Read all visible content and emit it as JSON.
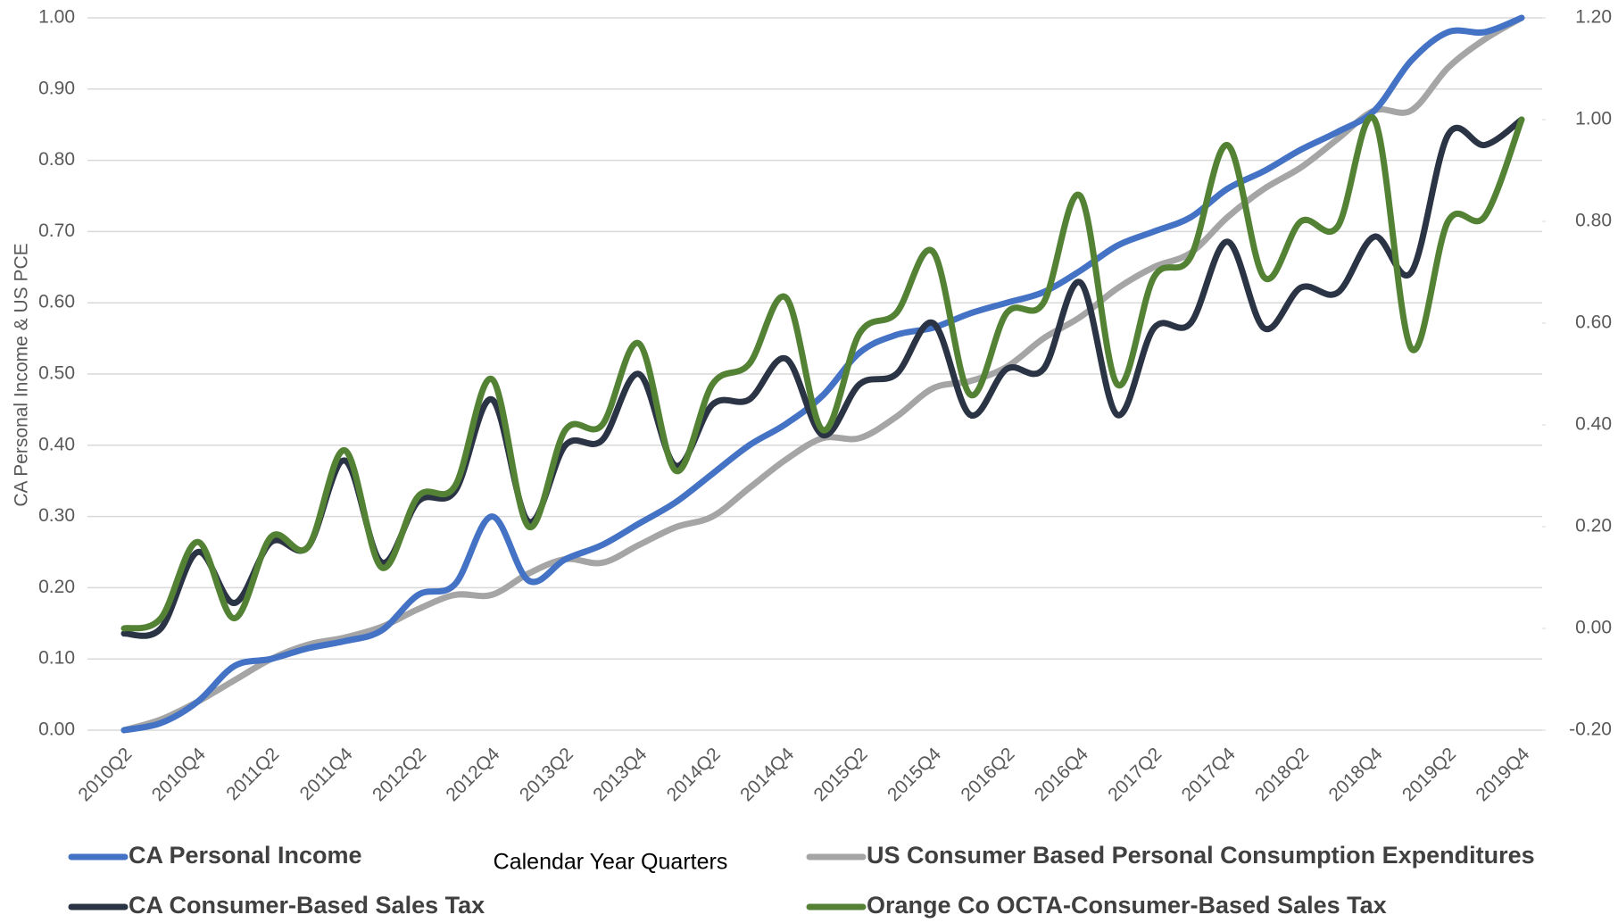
{
  "chart_data": {
    "type": "line",
    "xlabel": "Calendar Year Quarters",
    "ylabel": "CA Personal Income & US PCE",
    "categories": [
      "2010Q2",
      null,
      "2010Q4",
      null,
      "2011Q2",
      null,
      "2011Q4",
      null,
      "2012Q2",
      null,
      "2012Q4",
      null,
      "2013Q2",
      null,
      "2013Q4",
      null,
      "2014Q2",
      null,
      "2014Q4",
      null,
      "2015Q2",
      null,
      "2015Q4",
      null,
      "2016Q2",
      null,
      "2016Q4",
      null,
      "2017Q2",
      null,
      "2017Q4",
      null,
      "2018Q2",
      null,
      "2018Q4",
      null,
      "2019Q2",
      null,
      "2019Q4"
    ],
    "series": [
      {
        "name": "CA Personal Income",
        "color": "#4472c4",
        "values": [
          0.0,
          0.01,
          0.04,
          0.09,
          0.1,
          0.115,
          0.125,
          0.14,
          0.19,
          0.205,
          0.3,
          0.21,
          0.24,
          0.26,
          0.29,
          0.32,
          0.36,
          0.4,
          0.43,
          0.47,
          0.53,
          0.555,
          0.565,
          0.585,
          0.6,
          0.615,
          0.645,
          0.68,
          0.7,
          0.72,
          0.76,
          0.785,
          0.815,
          0.84,
          0.87,
          0.94,
          0.98,
          0.98,
          1.0
        ]
      },
      {
        "name": "US Consumer Based Personal Consumption Expenditures",
        "color": "#a5a5a5",
        "values": [
          0.0,
          0.015,
          0.04,
          0.07,
          0.1,
          0.12,
          0.13,
          0.145,
          0.17,
          0.19,
          0.19,
          0.22,
          0.24,
          0.235,
          0.26,
          0.285,
          0.3,
          0.34,
          0.38,
          0.41,
          0.41,
          0.44,
          0.48,
          0.49,
          0.51,
          0.55,
          0.58,
          0.62,
          0.65,
          0.67,
          0.72,
          0.76,
          0.79,
          0.83,
          0.87,
          0.87,
          0.93,
          0.97,
          1.0
        ]
      },
      {
        "name": "CA Consumer-Based Sales Tax",
        "color": "#2b3444",
        "axis": "y2",
        "values": [
          -0.01,
          0.0,
          0.15,
          0.05,
          0.17,
          0.16,
          0.33,
          0.13,
          0.25,
          0.27,
          0.45,
          0.21,
          0.36,
          0.37,
          0.5,
          0.32,
          0.44,
          0.45,
          0.53,
          0.38,
          0.48,
          0.5,
          0.6,
          0.42,
          0.51,
          0.51,
          0.68,
          0.42,
          0.59,
          0.6,
          0.76,
          0.59,
          0.67,
          0.66,
          0.77,
          0.7,
          0.97,
          0.95,
          1.0
        ]
      },
      {
        "name": "Orange Co OCTA-Consumer-Based Sales Tax",
        "color": "#548235",
        "axis": "y2",
        "values": [
          0.0,
          0.02,
          0.17,
          0.02,
          0.18,
          0.16,
          0.35,
          0.12,
          0.26,
          0.28,
          0.49,
          0.2,
          0.39,
          0.4,
          0.56,
          0.31,
          0.48,
          0.52,
          0.65,
          0.39,
          0.58,
          0.62,
          0.74,
          0.46,
          0.62,
          0.64,
          0.85,
          0.48,
          0.69,
          0.73,
          0.95,
          0.69,
          0.8,
          0.79,
          1.0,
          0.55,
          0.8,
          0.81,
          1.0
        ]
      }
    ],
    "ylim": [
      0,
      1
    ],
    "yticks": [
      {
        "value": 0,
        "label": "0.00"
      },
      {
        "value": 0.1,
        "label": "0.10"
      },
      {
        "value": 0.2,
        "label": "0.20"
      },
      {
        "value": 0.3,
        "label": "0.30"
      },
      {
        "value": 0.4,
        "label": "0.40"
      },
      {
        "value": 0.5,
        "label": "0.50"
      },
      {
        "value": 0.6,
        "label": "0.60"
      },
      {
        "value": 0.7,
        "label": "0.70"
      },
      {
        "value": 0.8,
        "label": "0.80"
      },
      {
        "value": 0.9,
        "label": "0.90"
      },
      {
        "value": 1,
        "label": "1.00"
      }
    ],
    "y2lim": [
      -0.2,
      1.2
    ],
    "y2ticks": [
      {
        "value": -0.2,
        "label": "-0.20"
      },
      {
        "value": 0,
        "label": "0.00"
      },
      {
        "value": 0.2,
        "label": "0.20"
      },
      {
        "value": 0.4,
        "label": "0.40"
      },
      {
        "value": 0.6,
        "label": "0.60"
      },
      {
        "value": 0.8,
        "label": "0.80"
      },
      {
        "value": 1,
        "label": "1.00"
      },
      {
        "value": 1.2,
        "label": "1.20"
      }
    ],
    "grid": true,
    "legend": "bottom"
  }
}
